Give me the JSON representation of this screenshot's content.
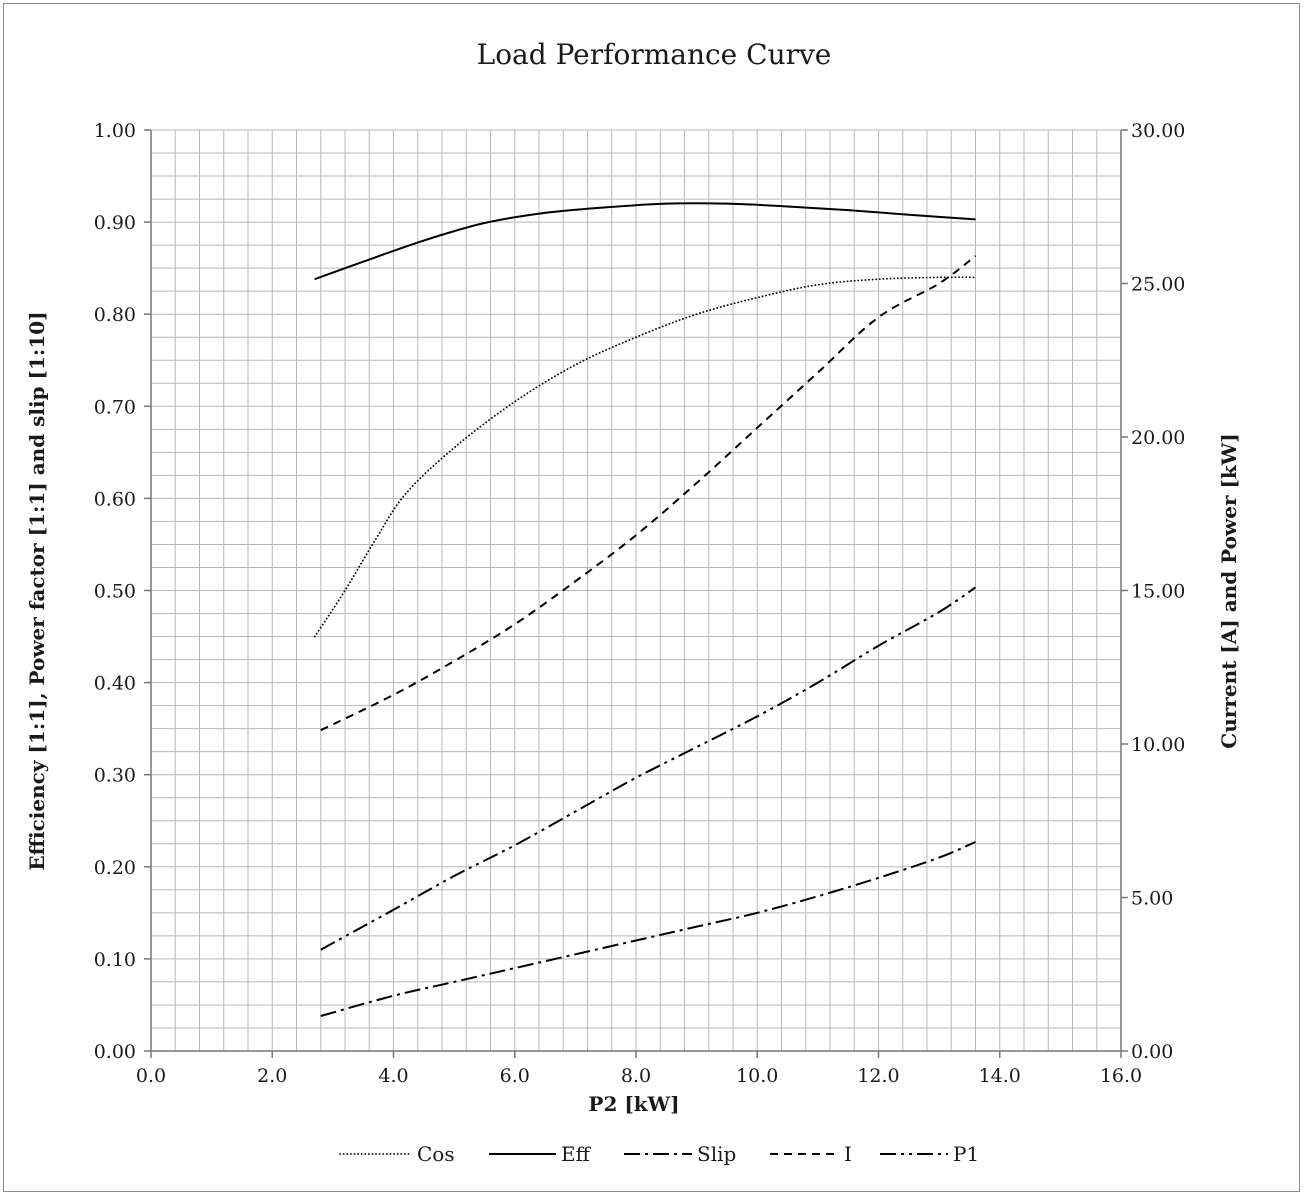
{
  "chart_data": {
    "type": "line",
    "title": "Load Performance Curve",
    "xlabel": "P2 [kW]",
    "ylabel_left": "Efficiency [1:1], Power factor [1:1] and slip [1:10]",
    "ylabel_right": "Current [A] and Power [kW]",
    "xlim": [
      0,
      16
    ],
    "ylim_left": [
      0,
      1
    ],
    "ylim_right": [
      0,
      30
    ],
    "x_ticks": [
      "0.0",
      "2.0",
      "4.0",
      "6.0",
      "8.0",
      "10.0",
      "12.0",
      "14.0",
      "16.0"
    ],
    "y_left_ticks": [
      "0.00",
      "0.10",
      "0.20",
      "0.30",
      "0.40",
      "0.50",
      "0.60",
      "0.70",
      "0.80",
      "0.90",
      "1.00"
    ],
    "y_right_ticks": [
      "0.00",
      "5.00",
      "10.00",
      "15.00",
      "20.00",
      "25.00",
      "30.00"
    ],
    "grid": true,
    "legend_position": "bottom",
    "series": [
      {
        "name": "Cos",
        "axis": "left",
        "dash": "2,3",
        "x": [
          2.7,
          3.2,
          3.7,
          4.2,
          5.0,
          6.0,
          7.0,
          8.0,
          9.0,
          10.0,
          11.0,
          12.0,
          13.0,
          13.6
        ],
        "y": [
          0.45,
          0.5,
          0.555,
          0.605,
          0.655,
          0.705,
          0.745,
          0.775,
          0.8,
          0.818,
          0.832,
          0.838,
          0.84,
          0.84
        ]
      },
      {
        "name": "Eff",
        "axis": "left",
        "dash": "",
        "x": [
          2.7,
          3.5,
          4.5,
          5.5,
          6.5,
          7.5,
          8.5,
          9.5,
          10.5,
          11.5,
          12.5,
          13.6
        ],
        "y": [
          0.838,
          0.857,
          0.88,
          0.899,
          0.91,
          0.916,
          0.92,
          0.92,
          0.917,
          0.913,
          0.908,
          0.903
        ]
      },
      {
        "name": "Slip",
        "axis": "left",
        "dash": "16,5,3,5",
        "x": [
          2.8,
          4.0,
          5.0,
          6.0,
          7.0,
          8.0,
          9.0,
          10.0,
          11.0,
          12.0,
          13.0,
          13.6
        ],
        "y": [
          0.038,
          0.06,
          0.075,
          0.09,
          0.105,
          0.12,
          0.135,
          0.15,
          0.168,
          0.188,
          0.21,
          0.227
        ]
      },
      {
        "name": "I",
        "axis": "right",
        "dash": "8,6",
        "x": [
          2.8,
          4.0,
          5.0,
          6.0,
          7.0,
          8.0,
          9.0,
          10.0,
          11.0,
          12.0,
          13.0,
          13.6
        ],
        "y": [
          10.45,
          11.6,
          12.7,
          13.9,
          15.3,
          16.8,
          18.5,
          20.3,
          22.1,
          23.9,
          25.0,
          25.9
        ]
      },
      {
        "name": "P1",
        "axis": "right",
        "dash": "16,5,3,5,3,5",
        "x": [
          2.8,
          4.0,
          5.0,
          6.0,
          7.0,
          8.0,
          9.0,
          10.0,
          11.0,
          12.0,
          13.0,
          13.6
        ],
        "y": [
          3.3,
          4.6,
          5.7,
          6.7,
          7.8,
          8.9,
          9.9,
          10.9,
          12.0,
          13.2,
          14.3,
          15.1
        ]
      }
    ]
  }
}
